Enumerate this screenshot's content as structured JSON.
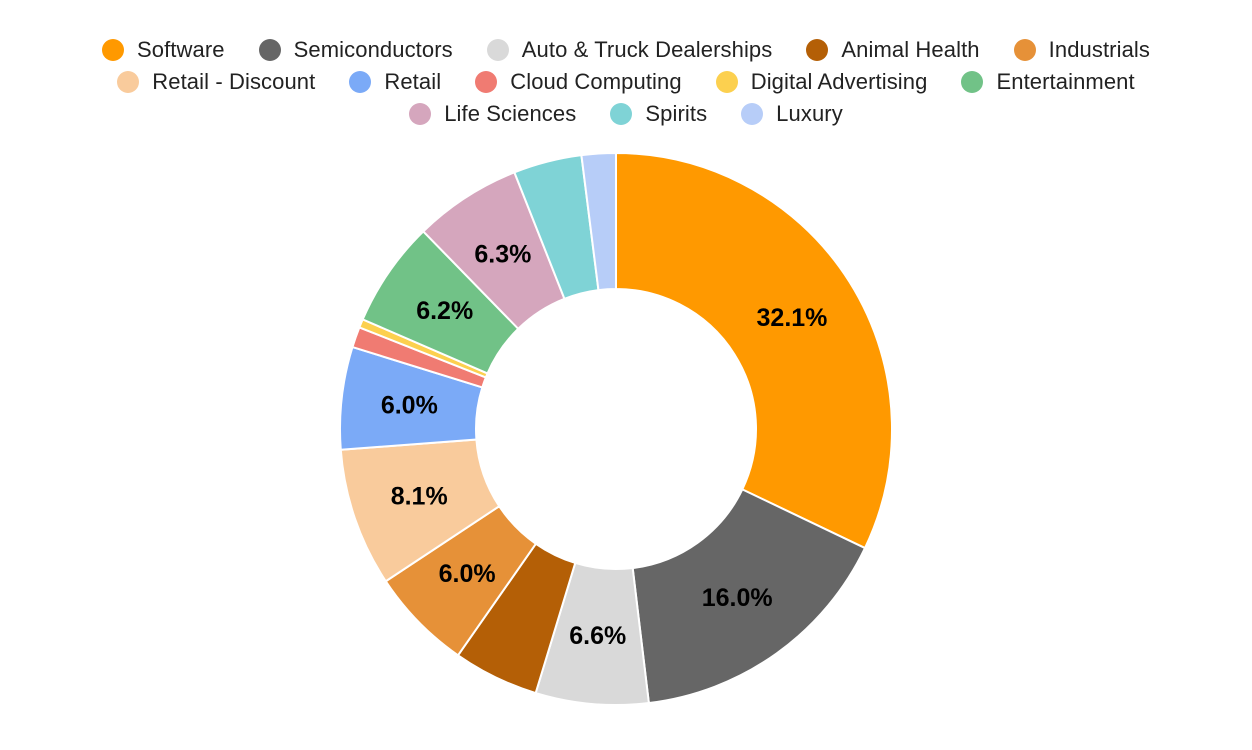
{
  "chart_data": {
    "type": "pie",
    "donut": true,
    "start_angle_deg": 0,
    "direction": "clockwise",
    "legend_position": "top",
    "slices": [
      {
        "label": "Software",
        "value": 32.1,
        "display": "32.1%",
        "color": "#ff9900"
      },
      {
        "label": "Semiconductors",
        "value": 16.0,
        "display": "16.0%",
        "color": "#666666"
      },
      {
        "label": "Auto & Truck Dealerships",
        "value": 6.6,
        "display": "6.6%",
        "color": "#d9d9d9"
      },
      {
        "label": "Animal Health",
        "value": 5.0,
        "display": "",
        "color": "#b45f06"
      },
      {
        "label": "Industrials",
        "value": 6.0,
        "display": "6.0%",
        "color": "#e69138"
      },
      {
        "label": "Retail - Discount",
        "value": 8.1,
        "display": "8.1%",
        "color": "#f9cb9c"
      },
      {
        "label": "Retail",
        "value": 6.0,
        "display": "6.0%",
        "color": "#7baaf7"
      },
      {
        "label": "Cloud Computing",
        "value": 1.2,
        "display": "",
        "color": "#f07b72"
      },
      {
        "label": "Digital Advertising",
        "value": 0.5,
        "display": "",
        "color": "#fcd04f"
      },
      {
        "label": "Entertainment",
        "value": 6.2,
        "display": "6.2%",
        "color": "#71c287"
      },
      {
        "label": "Life Sciences",
        "value": 6.3,
        "display": "6.3%",
        "color": "#d5a6bd"
      },
      {
        "label": "Spirits",
        "value": 4.0,
        "display": "",
        "color": "#7fd3d6"
      },
      {
        "label": "Luxury",
        "value": 2.0,
        "display": "",
        "color": "#b7cdf8"
      }
    ]
  }
}
